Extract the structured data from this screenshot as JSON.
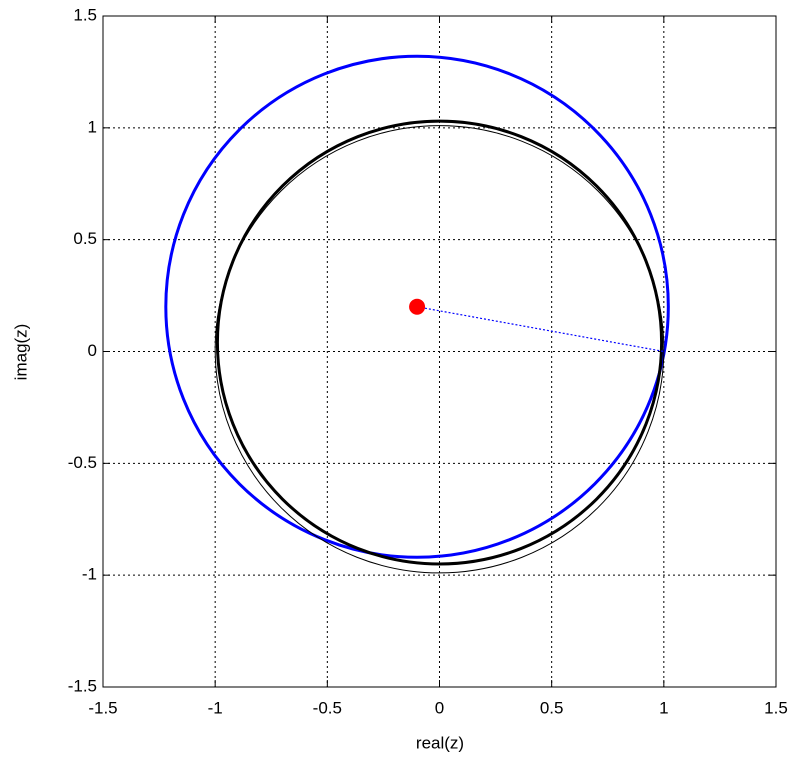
{
  "chart_data": {
    "type": "circles",
    "xlabel": "real(z)",
    "ylabel": "imag(z)",
    "xlim": [
      -1.5,
      1.5
    ],
    "ylim": [
      -1.5,
      1.5
    ],
    "xticks": [
      -1.5,
      -1,
      -0.5,
      0,
      0.5,
      1,
      1.5
    ],
    "yticks": [
      -1.5,
      -1,
      -0.5,
      0,
      0.5,
      1,
      1.5
    ],
    "grid": true,
    "circles": [
      {
        "color": "#0000ff",
        "center": [
          -0.1,
          0.2
        ],
        "radius": 1.12,
        "width": 3
      },
      {
        "color": "#000000",
        "center": [
          0,
          0.04
        ],
        "radius": 0.99,
        "width": 3
      },
      {
        "color": "#000000",
        "center": [
          0,
          0.01
        ],
        "radius": 1.0,
        "width": 1
      }
    ],
    "lines": [
      {
        "color": "#0000ff",
        "x": [
          -0.1,
          1
        ],
        "y": [
          0.2,
          0
        ]
      }
    ],
    "points": [
      {
        "color": "#ff0000",
        "x": -0.1,
        "y": 0.2
      }
    ]
  }
}
